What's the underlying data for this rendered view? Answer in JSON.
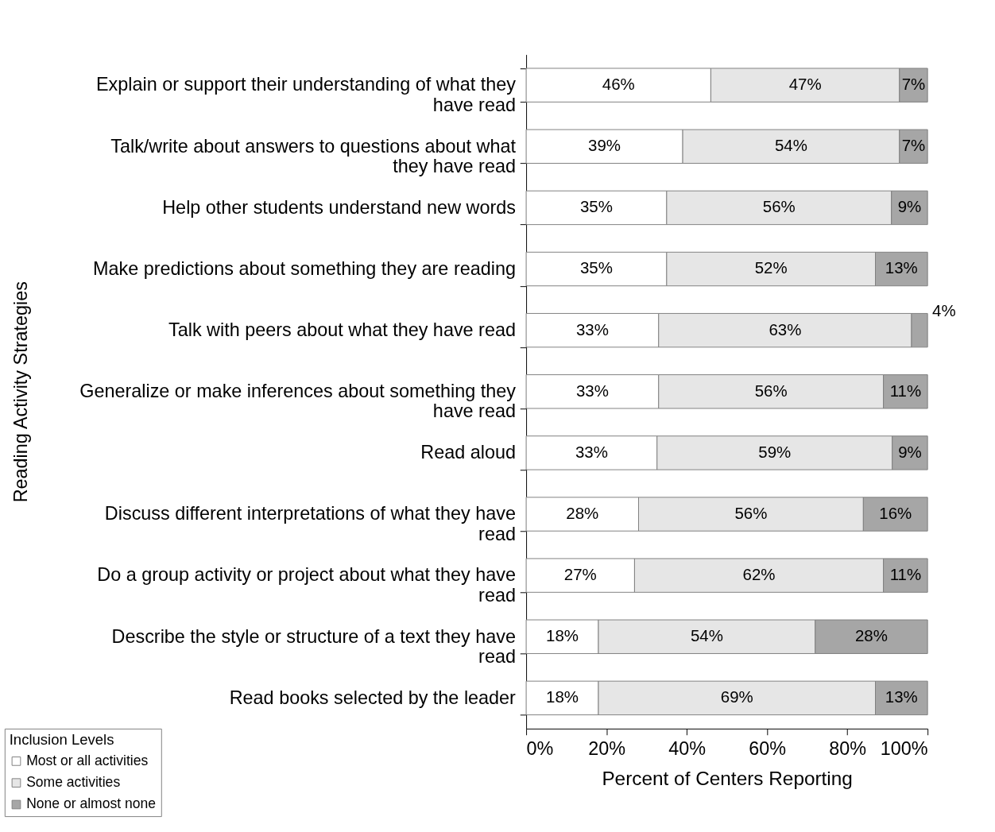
{
  "chart_data": {
    "type": "bar",
    "orientation": "horizontal",
    "stacked": true,
    "xlabel": "Percent of Centers Reporting",
    "ylabel": "Reading Activity Strategies",
    "legend_title": "Inclusion Levels",
    "categories": [
      "Explain or support their understanding of what they have read",
      "Talk/write about answers to questions about what they have read",
      "Help other students understand new words",
      "Make predictions about something they are reading",
      "Talk with peers about what they have read",
      "Generalize or make inferences about something they have read",
      "Read aloud",
      "Discuss different interpretations of what they have read",
      "Do a group activity or project about what they have read",
      "Describe the style or structure of a text they have read",
      "Read books selected by the leader"
    ],
    "series": [
      {
        "name": "Most or all activities",
        "color": "#ffffff",
        "values": [
          46,
          39,
          35,
          35,
          33,
          33,
          32.6,
          28,
          27,
          18,
          18
        ],
        "value_labels": [
          "46%",
          "39%",
          "35%",
          "35%",
          "33%",
          "33%",
          "33%",
          "28%",
          "27%",
          "18%",
          "18%"
        ]
      },
      {
        "name": "Some activities",
        "color": "#e6e6e6",
        "values": [
          47,
          54,
          56,
          52,
          63,
          56,
          58.6,
          56,
          62,
          54,
          69
        ],
        "value_labels": [
          "47%",
          "54%",
          "56%",
          "52%",
          "63%",
          "56%",
          "59%",
          "56%",
          "62%",
          "54%",
          "69%"
        ]
      },
      {
        "name": "None or almost none",
        "color": "#a6a6a6",
        "values": [
          7,
          7,
          9,
          13,
          4,
          11,
          8.8,
          16,
          11,
          28,
          13
        ],
        "value_labels": [
          "7%",
          "7%",
          "9%",
          "13%",
          "4%",
          "11%",
          "9%",
          "16%",
          "11%",
          "28%",
          "13%"
        ]
      }
    ],
    "xlim": [
      0,
      100
    ],
    "xticks": [
      {
        "value": 0,
        "label": "0%"
      },
      {
        "value": 20,
        "label": "20%"
      },
      {
        "value": 40,
        "label": "40%"
      },
      {
        "value": 60,
        "label": "60%"
      },
      {
        "value": 80,
        "label": "80%"
      },
      {
        "value": 100,
        "label": "100%"
      }
    ],
    "grid": false,
    "legend": "bottom left"
  }
}
